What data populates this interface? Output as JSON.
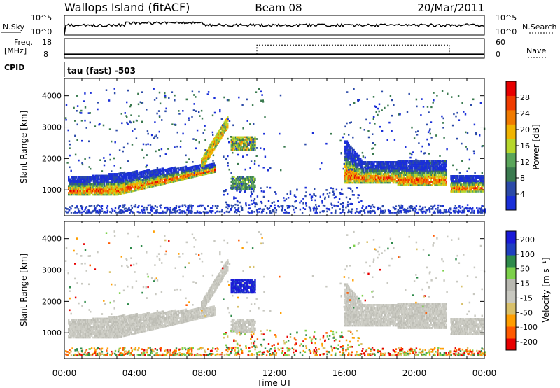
{
  "header": {
    "station": "Wallops Island (fitACF)",
    "beam": "Beam 08",
    "date": "20/Mar/2011",
    "mode": "tau (fast) -503"
  },
  "strip_labels": {
    "nsky": "N.Sky",
    "nsearch": "N.Search",
    "freq_line1": "Freq.",
    "freq_line2": "[MHz]",
    "nave": "Nave",
    "cpid": "CPID",
    "noise_ticks": [
      "10^5",
      "10^0"
    ],
    "freq_ticks": [
      "18",
      "8"
    ],
    "nave_ticks": [
      "60",
      "0"
    ]
  },
  "colors": {
    "power_scale": [
      "#1a2fd8",
      "#2b4aa8",
      "#3a7a4f",
      "#5aa55a",
      "#b7d72c",
      "#f0b400",
      "#f07a00",
      "#f03c00",
      "#e80000"
    ],
    "velocity_scale": [
      "#e80000",
      "#ff5a00",
      "#ff9e00",
      "#d8c06a",
      "#c8c8c0",
      "#b8b8b0",
      "#7cd04a",
      "#2e8a4a",
      "#1f3fc0",
      "#1a1ad8"
    ]
  },
  "chart_data": [
    {
      "type": "heatmap",
      "name": "power",
      "ylabel": "Slant Range [km]",
      "xlabel": "Time UT",
      "x_ticks": [
        "00:00",
        "04:00",
        "08:00",
        "12:00",
        "16:00",
        "20:00",
        "00:00"
      ],
      "xlim_hours": [
        0,
        24
      ],
      "y_ticks": [
        1000,
        2000,
        3000,
        4000
      ],
      "ylim": [
        180,
        4550
      ],
      "colorbar": {
        "label": "Power [dB]",
        "ticks": [
          4,
          8,
          12,
          16,
          20,
          24,
          28
        ],
        "range": [
          0,
          32
        ]
      }
    },
    {
      "type": "heatmap",
      "name": "velocity",
      "ylabel": "Slant Range [km]",
      "xlabel": "Time UT",
      "x_ticks": [
        "00:00",
        "04:00",
        "08:00",
        "12:00",
        "16:00",
        "20:00",
        "00:00"
      ],
      "xlim_hours": [
        0,
        24
      ],
      "y_ticks": [
        1000,
        2000,
        3000,
        4000
      ],
      "ylim": [
        180,
        4550
      ],
      "colorbar": {
        "label": "Velocity [m s⁻¹]",
        "ticks": [
          "200",
          "100",
          "50",
          "15",
          "-15",
          "-50",
          "-100",
          "-200"
        ]
      }
    },
    {
      "type": "line",
      "name": "operating-frequency",
      "x": [
        0,
        11,
        11,
        22,
        22,
        24
      ],
      "y": [
        10,
        10,
        10,
        10,
        10,
        10
      ],
      "ylim": [
        8,
        18
      ]
    },
    {
      "type": "line",
      "name": "nave",
      "x": [
        0,
        11,
        11,
        22,
        22,
        24
      ],
      "y": [
        10,
        10,
        40,
        40,
        10,
        10
      ],
      "ylim": [
        0,
        60
      ]
    }
  ]
}
